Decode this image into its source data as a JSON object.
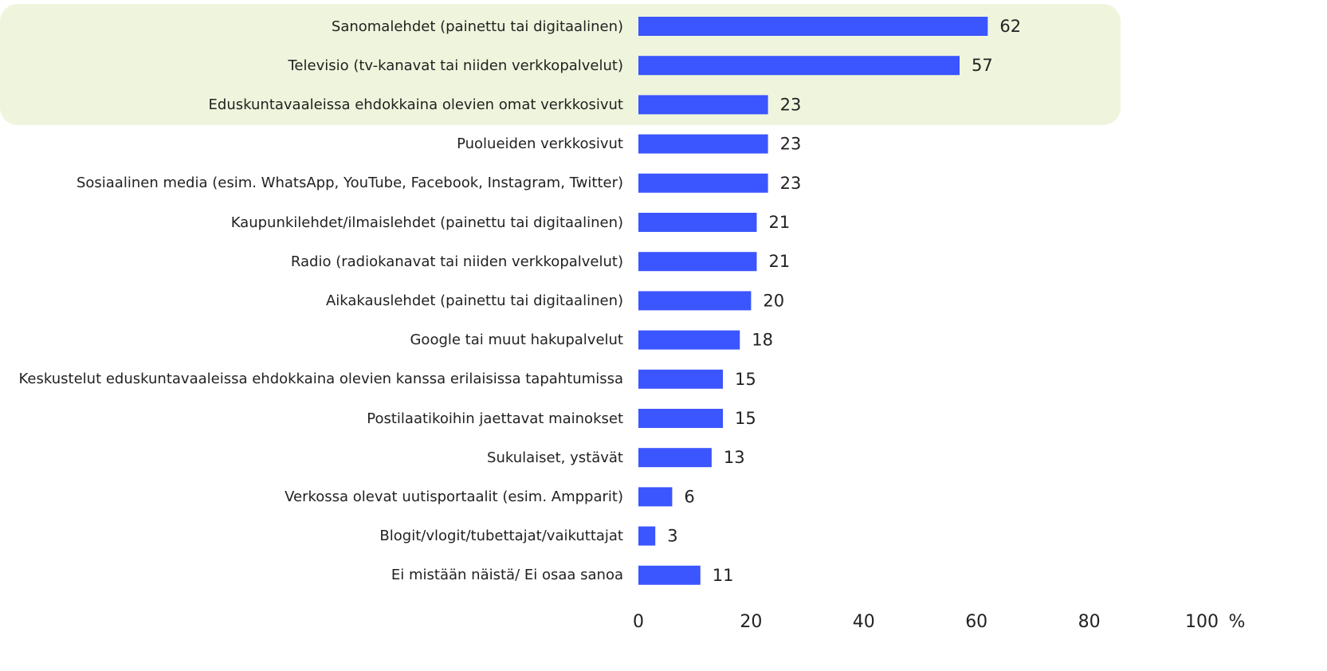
{
  "chart_data": {
    "type": "barh",
    "categories": [
      "Sanomalehdet (painettu tai digitaalinen)",
      "Televisio (tv-kanavat tai niiden verkkopalvelut)",
      "Eduskuntavaaleissa ehdokkaina olevien omat verkkosivut",
      "Puolueiden verkkosivut",
      "Sosiaalinen media (esim. WhatsApp, YouTube, Facebook, Instagram, Twitter)",
      "Kaupunkilehdet/ilmaislehdet (painettu tai digitaalinen)",
      "Radio (radiokanavat tai niiden verkkopalvelut)",
      "Aikakauslehdet (painettu tai digitaalinen)",
      "Google tai muut hakupalvelut",
      "Keskustelut eduskuntavaaleissa ehdokkaina olevien kanssa erilaisissa tapahtumissa",
      "Postilaatikoihin jaettavat mainokset",
      "Sukulaiset, ystävät",
      "Verkossa olevat uutisportaalit (esim. Ampparit)",
      "Blogit/vlogit/tubettajat/vaikuttajat",
      "Ei mistään näistä/ Ei osaa sanoa"
    ],
    "values": [
      62,
      57,
      23,
      23,
      23,
      21,
      21,
      20,
      18,
      15,
      15,
      13,
      6,
      3,
      11
    ],
    "color": "#3b55ff",
    "x_label": "%",
    "xlim": [
      0,
      100
    ],
    "xticks": [
      0,
      20,
      40,
      60,
      80,
      100
    ],
    "grid": false
  }
}
